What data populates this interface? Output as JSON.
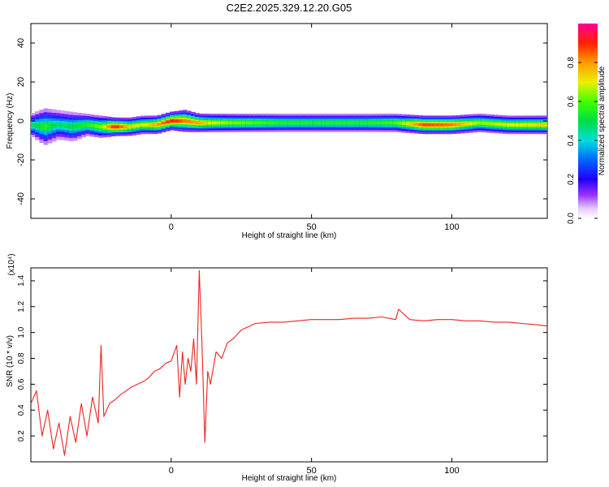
{
  "title": "C2E2.2025.329.12.20.G05",
  "chart_data": [
    {
      "type": "heatmap",
      "xlabel": "Height of straight line (km)",
      "ylabel": "Frequency (Hz)",
      "xlim": [
        -50,
        134
      ],
      "ylim": [
        -50,
        50
      ],
      "xticks": [
        0,
        50,
        100
      ],
      "yticks": [
        -40,
        -20,
        0,
        20,
        40
      ],
      "colorbar": {
        "label": "Normalized spectral amplitude",
        "range": [
          0,
          1
        ],
        "ticks": [
          "0.0",
          "0.2",
          "0.4",
          "0.6",
          "0.8"
        ]
      },
      "ridge": {
        "x": [
          -50,
          -45,
          -40,
          -35,
          -30,
          -25,
          -20,
          -15,
          -10,
          -5,
          0,
          5,
          10,
          15,
          20,
          30,
          40,
          50,
          60,
          70,
          80,
          90,
          100,
          110,
          120,
          134
        ],
        "frequency_hz": [
          -2,
          -3,
          -2,
          -3,
          -2,
          -3,
          -3,
          -3,
          -2,
          -2,
          0,
          0,
          -1,
          -1,
          -1,
          -1,
          -1,
          -1,
          -1,
          -1,
          -1,
          -2,
          -2,
          -1,
          -2,
          -2
        ],
        "half_width_hz": [
          3,
          5,
          4,
          4,
          3,
          3,
          2.5,
          2.5,
          2.5,
          2.5,
          2.5,
          3,
          2.5,
          2.5,
          2.5,
          2.5,
          2.5,
          2.5,
          2.5,
          2.5,
          2.5,
          2.5,
          2.5,
          2.5,
          2.5,
          2.5
        ],
        "peak_amplitude": [
          0.5,
          0.6,
          0.5,
          0.55,
          0.6,
          0.7,
          1.0,
          0.8,
          0.75,
          0.85,
          1.0,
          0.9,
          0.85,
          0.75,
          0.7,
          0.65,
          0.6,
          0.6,
          0.6,
          0.6,
          0.65,
          0.95,
          0.9,
          0.7,
          0.75,
          0.8
        ]
      }
    },
    {
      "type": "line",
      "xlabel": "Height of straight line (km)",
      "ylabel": "SNR (10 * v/v)",
      "multiplier_label": "(x10⁴)",
      "xlim": [
        -50,
        134
      ],
      "ylim": [
        0,
        1.5
      ],
      "xticks": [
        0,
        50,
        100
      ],
      "yticks": [
        0.2,
        0.4,
        0.6,
        0.8,
        1.0,
        1.2,
        1.4
      ],
      "color": "#ee2222",
      "series": [
        {
          "x": [
            -50,
            -48,
            -46,
            -44,
            -42,
            -40,
            -38,
            -36,
            -34,
            -32,
            -30,
            -28,
            -26,
            -25,
            -24,
            -22,
            -20,
            -18,
            -16,
            -14,
            -12,
            -10,
            -8,
            -6,
            -4,
            -2,
            0,
            2,
            3,
            4,
            5,
            6,
            7,
            8,
            9,
            10,
            11,
            12,
            13,
            14,
            16,
            18,
            20,
            22,
            25,
            30,
            35,
            40,
            45,
            50,
            55,
            60,
            65,
            70,
            75,
            80,
            81,
            85,
            90,
            95,
            100,
            105,
            110,
            115,
            120,
            125,
            130,
            134
          ],
          "y": [
            0.45,
            0.55,
            0.2,
            0.4,
            0.1,
            0.3,
            0.05,
            0.35,
            0.15,
            0.45,
            0.2,
            0.5,
            0.3,
            0.9,
            0.35,
            0.45,
            0.48,
            0.52,
            0.55,
            0.58,
            0.6,
            0.62,
            0.65,
            0.7,
            0.72,
            0.76,
            0.78,
            0.9,
            0.5,
            0.85,
            0.6,
            0.8,
            0.7,
            0.95,
            0.6,
            1.48,
            0.9,
            0.15,
            0.7,
            0.6,
            0.85,
            0.8,
            0.92,
            0.95,
            1.02,
            1.07,
            1.08,
            1.08,
            1.09,
            1.1,
            1.1,
            1.1,
            1.11,
            1.11,
            1.12,
            1.1,
            1.18,
            1.1,
            1.09,
            1.1,
            1.1,
            1.09,
            1.09,
            1.08,
            1.08,
            1.07,
            1.06,
            1.05
          ]
        }
      ]
    }
  ]
}
